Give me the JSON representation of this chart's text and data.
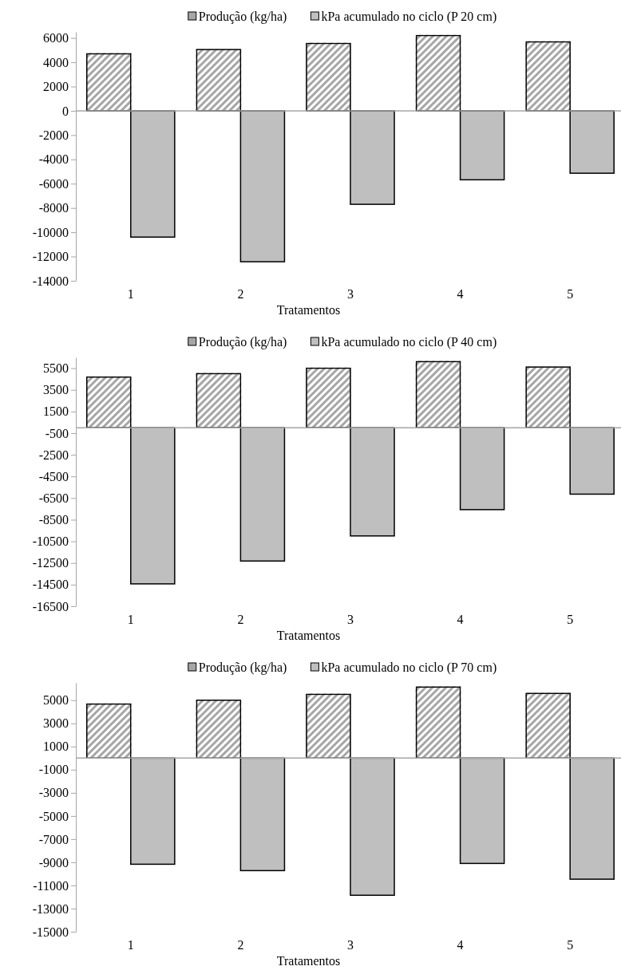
{
  "chart_data": [
    {
      "type": "bar",
      "xlabel": "Tratamentos",
      "categories": [
        "1",
        "2",
        "3",
        "4",
        "5"
      ],
      "legend": "top",
      "ylim": [
        -14000,
        6500
      ],
      "yticks": [
        -14000,
        -12000,
        -10000,
        -8000,
        -6000,
        -4000,
        -2000,
        0,
        2000,
        4000,
        6000
      ],
      "series": [
        {
          "name": "Produção (kg/ha)",
          "color": "#a6a6a6",
          "values": [
            4700,
            5050,
            5550,
            6200,
            5680
          ]
        },
        {
          "name": "kPa acumulado no ciclo (P 20 cm)",
          "color": "#bfbfbf",
          "values": [
            -10400,
            -12430,
            -7700,
            -5680,
            -5140
          ]
        }
      ]
    },
    {
      "type": "bar",
      "xlabel": "Tratamentos",
      "categories": [
        "1",
        "2",
        "3",
        "4",
        "5"
      ],
      "legend": "top",
      "ylim": [
        -16500,
        6500
      ],
      "yticks": [
        -16500,
        -14500,
        -12500,
        -10500,
        -8500,
        -6500,
        -4500,
        -2500,
        -500,
        1500,
        3500,
        5500
      ],
      "series": [
        {
          "name": "Produção (kg/ha)",
          "color": "#a6a6a6",
          "values": [
            4680,
            5000,
            5500,
            6110,
            5610
          ]
        },
        {
          "name": "kPa acumulado no ciclo (P 40 cm)",
          "color": "#bfbfbf",
          "values": [
            -14430,
            -12320,
            -10000,
            -7570,
            -6140
          ]
        }
      ]
    },
    {
      "type": "bar",
      "xlabel": "Tratamentos",
      "categories": [
        "1",
        "2",
        "3",
        "4",
        "5"
      ],
      "legend": "top",
      "ylim": [
        -15000,
        6500
      ],
      "yticks": [
        -15000,
        -13000,
        -11000,
        -9000,
        -7000,
        -5000,
        -3000,
        -1000,
        1000,
        3000,
        5000
      ],
      "series": [
        {
          "name": "Produção (kg/ha)",
          "color": "#a6a6a6",
          "values": [
            4670,
            5000,
            5510,
            6140,
            5590
          ]
        },
        {
          "name": "kPa acumulado no ciclo (P 70 cm)",
          "color": "#bfbfbf",
          "values": [
            -9170,
            -9720,
            -11850,
            -9100,
            -10460
          ]
        }
      ]
    }
  ]
}
